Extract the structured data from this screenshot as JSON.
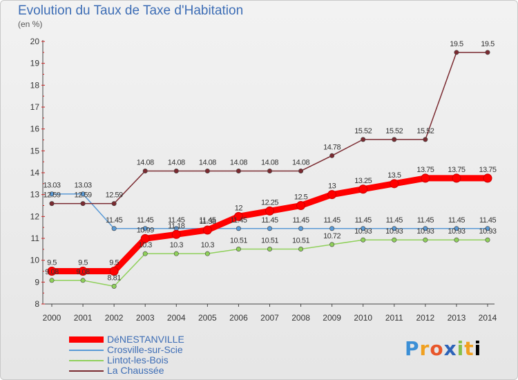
{
  "chart_data": {
    "type": "line",
    "title": "Evolution du Taux de Taxe d'Habitation",
    "subtitle": "(en %)",
    "x": [
      2000,
      2001,
      2002,
      2003,
      2004,
      2005,
      2006,
      2007,
      2008,
      2009,
      2010,
      2011,
      2012,
      2013,
      2014
    ],
    "ylim": [
      8,
      20
    ],
    "yticks": [
      8,
      9,
      10,
      11,
      12,
      13,
      14,
      15,
      16,
      17,
      18,
      19,
      20
    ],
    "grid": false,
    "legend_position": "bottom-left",
    "series": [
      {
        "name": "DéNESTANVILLE",
        "color": "#ff0000",
        "values": [
          9.5,
          9.5,
          9.5,
          10.99,
          11.18,
          11.38,
          12,
          12.25,
          12.5,
          13,
          13.25,
          13.5,
          13.75,
          13.75,
          13.75
        ],
        "labels": [
          "9.5",
          "9.5",
          "9.5",
          "10.99",
          "11.18",
          "11.38",
          "12",
          "12.25",
          "12.5",
          "13",
          "13.25",
          "13.5",
          "13.75",
          "13.75",
          "13.75"
        ]
      },
      {
        "name": "Crosville-sur-Scie",
        "color": "#5a9ad6",
        "values": [
          13.03,
          13.03,
          11.45,
          11.45,
          11.45,
          11.45,
          11.45,
          11.45,
          11.45,
          11.45,
          11.45,
          11.45,
          11.45,
          11.45,
          11.45
        ],
        "labels": [
          "13.03",
          "13.03",
          "11.45",
          "11.45",
          "11.45",
          "11.45",
          "11.45",
          "11.45",
          "11.45",
          "11.45",
          "11.45",
          "11.45",
          "11.45",
          "11.45",
          "11.45"
        ]
      },
      {
        "name": "Lintot-les-Bois",
        "color": "#8fd05a",
        "values": [
          9.08,
          9.08,
          8.81,
          10.3,
          10.3,
          10.3,
          10.51,
          10.51,
          10.51,
          10.72,
          10.93,
          10.93,
          10.93,
          10.93,
          10.93
        ],
        "labels": [
          "9.08",
          "9.08",
          "8.81",
          "10.3",
          "10.3",
          "10.3",
          "10.51",
          "10.51",
          "10.51",
          "10.72",
          "10.93",
          "10.93",
          "10.93",
          "10.93",
          "10.93"
        ]
      },
      {
        "name": "La Chaussée",
        "color": "#7a2a30",
        "values": [
          12.59,
          12.59,
          12.59,
          14.08,
          14.08,
          14.08,
          14.08,
          14.08,
          14.08,
          14.78,
          15.52,
          15.52,
          15.52,
          19.5,
          19.5
        ],
        "labels": [
          "12.59",
          "12.59",
          "12.59",
          "14.08",
          "14.08",
          "14.08",
          "14.08",
          "14.08",
          "14.08",
          "14.78",
          "15.52",
          "15.52",
          "15.52",
          "19.5",
          "19.5"
        ]
      }
    ]
  },
  "logo": {
    "letters": [
      "P",
      "r",
      "o",
      "x",
      "i",
      "t",
      "i"
    ]
  }
}
